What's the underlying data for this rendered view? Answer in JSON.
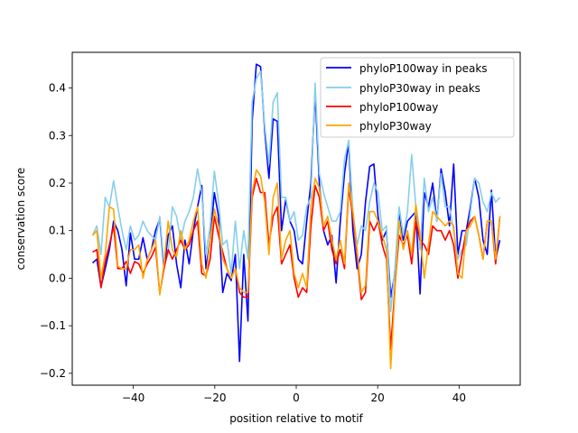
{
  "chart_data": {
    "type": "line",
    "title": "",
    "xlabel": "position relative to motif",
    "ylabel": "conservation score",
    "xlim": [
      -55,
      55
    ],
    "ylim": [
      -0.225,
      0.475
    ],
    "xticks": [
      -40,
      -20,
      0,
      20,
      40
    ],
    "yticks": [
      -0.2,
      -0.1,
      0.0,
      0.1,
      0.2,
      0.3,
      0.4
    ],
    "xtick_labels": [
      "−40",
      "−20",
      "0",
      "20",
      "40"
    ],
    "ytick_labels": [
      "−0.2",
      "−0.1",
      "0.0",
      "0.1",
      "0.2",
      "0.3",
      "0.4"
    ],
    "grid": false,
    "legend_position": "top-right",
    "x_start": -50,
    "x_end": 50,
    "series": [
      {
        "name": "phyloP100way in peaks",
        "color": "#0000ff",
        "values": [
          0.032,
          0.04,
          -0.018,
          0.02,
          0.06,
          0.12,
          0.1,
          0.06,
          -0.016,
          0.095,
          0.04,
          0.04,
          0.085,
          0.04,
          0.06,
          0.1,
          0.125,
          0.02,
          0.09,
          0.11,
          0.03,
          -0.02,
          0.08,
          0.03,
          0.1,
          0.15,
          0.195,
          0.02,
          0.08,
          0.18,
          0.13,
          -0.03,
          0.01,
          -0.005,
          0.05,
          -0.175,
          0.05,
          -0.09,
          0.33,
          0.45,
          0.445,
          0.31,
          0.21,
          0.335,
          0.33,
          0.1,
          0.165,
          0.12,
          0.1,
          0.04,
          0.03,
          0.12,
          0.2,
          0.39,
          0.2,
          0.1,
          0.07,
          0.09,
          -0.01,
          0.12,
          0.22,
          0.285,
          0.1,
          0.02,
          0.05,
          0.16,
          0.235,
          0.24,
          0.13,
          0.08,
          0.1,
          -0.04,
          0.01,
          0.14,
          0.08,
          0.12,
          0.13,
          0.14,
          -0.033,
          0.18,
          0.15,
          0.2,
          0.12,
          0.23,
          0.18,
          0.11,
          0.24,
          0.05,
          0.1,
          0.1,
          0.15,
          0.21,
          0.17,
          0.08,
          0.05,
          0.185,
          0.04,
          0.08
        ]
      },
      {
        "name": "phyloP30way in peaks",
        "color": "#87ceeb",
        "values": [
          0.09,
          0.11,
          0.05,
          0.17,
          0.15,
          0.205,
          0.15,
          0.1,
          0.06,
          0.11,
          0.08,
          0.09,
          0.12,
          0.1,
          0.09,
          0.08,
          0.13,
          0.03,
          0.05,
          0.15,
          0.13,
          0.08,
          0.12,
          0.14,
          0.17,
          0.23,
          0.18,
          0.05,
          0.11,
          0.225,
          0.16,
          0.07,
          0.08,
          0.01,
          0.12,
          0.02,
          0.1,
          0.04,
          0.37,
          0.42,
          0.435,
          0.32,
          0.24,
          0.37,
          0.39,
          0.17,
          0.17,
          0.12,
          0.14,
          0.08,
          0.09,
          0.15,
          0.17,
          0.41,
          0.22,
          0.18,
          0.15,
          0.12,
          0.12,
          0.14,
          0.25,
          0.29,
          0.14,
          0.07,
          0.11,
          0.1,
          0.16,
          0.2,
          0.18,
          0.1,
          0.11,
          -0.07,
          0.02,
          0.15,
          0.09,
          0.14,
          0.26,
          0.15,
          0.06,
          0.21,
          0.14,
          0.17,
          0.12,
          0.22,
          0.15,
          0.15,
          0.1,
          0.04,
          0.06,
          0.07,
          0.14,
          0.21,
          0.2,
          0.16,
          0.14,
          0.18,
          0.16,
          0.17
        ]
      },
      {
        "name": "phyloP100way",
        "color": "#ff0000",
        "values": [
          0.055,
          0.06,
          -0.02,
          0.035,
          0.07,
          0.11,
          0.02,
          0.02,
          0.035,
          0.01,
          0.035,
          0.03,
          0.01,
          0.03,
          0.045,
          0.065,
          -0.032,
          0.02,
          0.06,
          0.04,
          0.06,
          0.08,
          0.06,
          0.07,
          0.1,
          0.12,
          0.01,
          0.005,
          0.04,
          0.13,
          0.09,
          0.055,
          0.02,
          0.0,
          0.02,
          -0.03,
          -0.04,
          -0.04,
          0.17,
          0.21,
          0.18,
          0.18,
          0.07,
          0.13,
          0.15,
          0.03,
          0.05,
          0.07,
          0.0,
          -0.04,
          -0.02,
          -0.03,
          0.11,
          0.195,
          0.17,
          0.1,
          0.12,
          0.06,
          0.03,
          0.06,
          0.02,
          0.19,
          0.13,
          0.05,
          -0.045,
          -0.03,
          0.12,
          0.1,
          0.12,
          0.07,
          0.04,
          -0.15,
          -0.02,
          0.09,
          0.07,
          0.09,
          0.03,
          0.12,
          0.08,
          0.07,
          0.05,
          0.11,
          0.1,
          0.1,
          0.08,
          0.1,
          0.07,
          0.0,
          0.05,
          0.1,
          0.12,
          0.13,
          0.09,
          0.04,
          0.12,
          0.12,
          0.03,
          0.13
        ]
      },
      {
        "name": "phyloP30way",
        "color": "#ffa500",
        "values": [
          0.09,
          0.1,
          0.0,
          0.05,
          0.15,
          0.145,
          0.025,
          0.02,
          0.02,
          0.06,
          0.06,
          0.07,
          0.0,
          0.04,
          0.06,
          0.08,
          -0.035,
          0.03,
          0.12,
          0.06,
          0.045,
          0.1,
          0.06,
          0.08,
          0.12,
          0.15,
          0.03,
          0.0,
          0.08,
          0.145,
          0.11,
          0.04,
          0.02,
          0.0,
          0.02,
          -0.02,
          -0.03,
          -0.03,
          0.18,
          0.228,
          0.215,
          0.16,
          0.05,
          0.17,
          0.2,
          0.04,
          0.08,
          0.1,
          0.01,
          -0.02,
          0.01,
          -0.02,
          0.15,
          0.21,
          0.19,
          0.11,
          0.13,
          0.08,
          0.04,
          0.08,
          0.03,
          0.2,
          0.14,
          0.06,
          -0.03,
          -0.015,
          0.14,
          0.14,
          0.12,
          0.09,
          0.06,
          -0.19,
          -0.03,
          0.12,
          0.06,
          0.1,
          0.05,
          0.155,
          0.09,
          0.0,
          0.07,
          0.14,
          0.13,
          0.12,
          0.11,
          0.12,
          0.11,
          0.01,
          0.0,
          0.1,
          0.11,
          0.13,
          0.09,
          0.04,
          0.12,
          0.12,
          0.04,
          0.13
        ]
      }
    ]
  }
}
